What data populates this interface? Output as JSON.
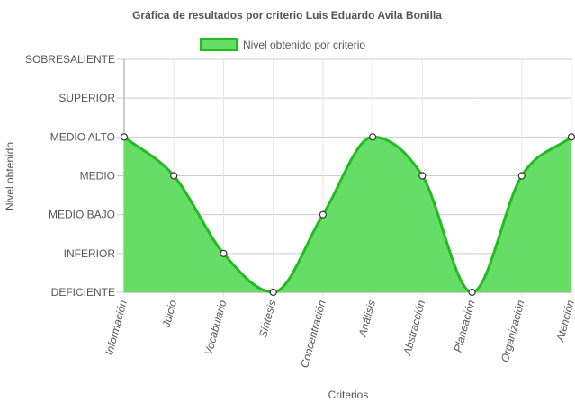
{
  "chart_data": {
    "type": "area",
    "title": "Gráfica de resultados por criterio Luis Eduardo Avila Bonilla",
    "xlabel": "Criterios",
    "ylabel": "Nivel obtenido",
    "legend": {
      "position": "top-center"
    },
    "grid": true,
    "y_levels": [
      "DEFICIENTE",
      "INFERIOR",
      "MEDIO BAJO",
      "MEDIO",
      "MEDIO ALTO",
      "SUPERIOR",
      "SOBRESALIENTE"
    ],
    "ylim": [
      0,
      6
    ],
    "categories": [
      "Información",
      "Juicio",
      "Vocabulario",
      "Síntesis",
      "Concentración",
      "Análisis",
      "Abstracción",
      "Planeación",
      "Organización",
      "Atención"
    ],
    "series": [
      {
        "name": "Nivel obtenido por criterio",
        "values": [
          4,
          3,
          1,
          0,
          2,
          4,
          3,
          0,
          3,
          4
        ],
        "fill_color": "#66dd66",
        "line_color": "#22bb22"
      }
    ]
  }
}
